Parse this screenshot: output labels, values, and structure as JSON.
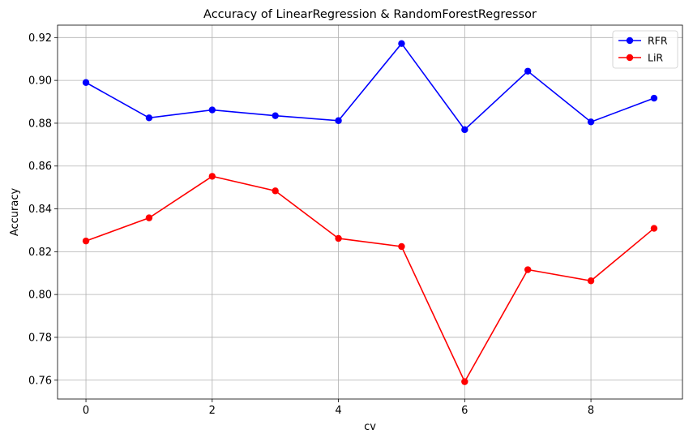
{
  "chart_data": {
    "type": "line",
    "title": "Accuracy of LinearRegression & RandomForestRegressor",
    "xlabel": "cv",
    "ylabel": "Accuracy",
    "x": [
      0,
      1,
      2,
      3,
      4,
      5,
      6,
      7,
      8,
      9
    ],
    "xlim": [
      -0.45,
      9.45
    ],
    "ylim": [
      0.7512,
      0.9258
    ],
    "xticks": [
      0,
      2,
      4,
      6,
      8
    ],
    "yticks": [
      0.76,
      0.78,
      0.8,
      0.82,
      0.84,
      0.86,
      0.88,
      0.9,
      0.92
    ],
    "grid": true,
    "legend_position": "top-right",
    "series": [
      {
        "name": "RFR",
        "color": "#0000ff",
        "values": [
          0.899,
          0.8825,
          0.8862,
          0.8835,
          0.8812,
          0.9172,
          0.877,
          0.9043,
          0.8806,
          0.8917
        ]
      },
      {
        "name": "LiR",
        "color": "#ff0000",
        "values": [
          0.825,
          0.8358,
          0.8552,
          0.8484,
          0.8262,
          0.8224,
          0.7593,
          0.8116,
          0.8064,
          0.8309
        ]
      }
    ]
  }
}
